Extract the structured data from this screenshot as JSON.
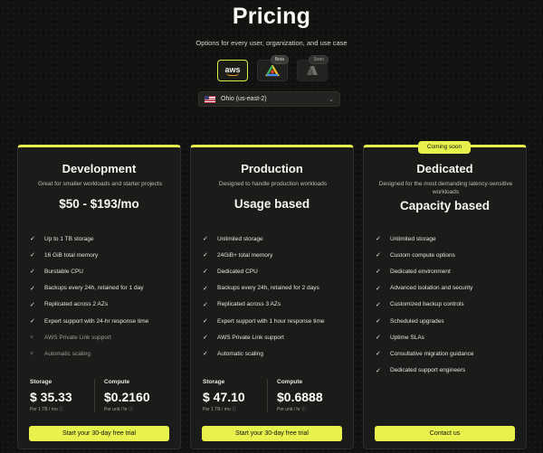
{
  "page": {
    "title": "Pricing",
    "subtitle": "Options for every user, organization, and use case"
  },
  "providers": [
    {
      "id": "aws",
      "label": "aws",
      "selected": true,
      "badge": ""
    },
    {
      "id": "gcp",
      "label": "",
      "selected": false,
      "badge": "Beta"
    },
    {
      "id": "azure",
      "label": "",
      "selected": false,
      "badge": "Soon"
    }
  ],
  "region": {
    "flag": "us-flag-icon",
    "label": "Ohio (us-east-2)"
  },
  "colors": {
    "accent": "#e8f24c",
    "background": "#121211",
    "card": "#1b1b1a"
  },
  "plans": [
    {
      "title": "Development",
      "subtitle": "Great for smaller workloads and starter projects",
      "price": "$50 - $193/mo",
      "features": [
        {
          "text": "Up to 1 TB storage",
          "included": true
        },
        {
          "text": "16 GiB total memory",
          "included": true
        },
        {
          "text": "Burstable CPU",
          "included": true
        },
        {
          "text": "Backups every 24h, retained for 1 day",
          "included": true
        },
        {
          "text": "Replicated across 2 AZs",
          "included": true
        },
        {
          "text": "Expert support with 24-hr response time",
          "included": true
        },
        {
          "text": "AWS Private Link support",
          "included": false
        },
        {
          "text": "Automatic scaling",
          "included": false
        }
      ],
      "storage": {
        "label": "Storage",
        "value": "$ 35.33",
        "note": "Per 1 TB / mo"
      },
      "compute": {
        "label": "Compute",
        "value": "$0.2160",
        "note": "Per unit / hr"
      },
      "cta": "Start your 30-day free trial"
    },
    {
      "title": "Production",
      "subtitle": "Designed to handle production workloads",
      "price": "Usage based",
      "features": [
        {
          "text": "Unlimited storage",
          "included": true
        },
        {
          "text": "24GiB+ total memory",
          "included": true
        },
        {
          "text": "Dedicated CPU",
          "included": true
        },
        {
          "text": "Backups every 24h, retained for 2 days",
          "included": true
        },
        {
          "text": "Replicated across 3 AZs",
          "included": true
        },
        {
          "text": "Expert support with 1 hour response time",
          "included": true
        },
        {
          "text": "AWS Private Link support",
          "included": true
        },
        {
          "text": "Automatic scaling",
          "included": true
        }
      ],
      "storage": {
        "label": "Storage",
        "value": "$ 47.10",
        "note": "Per 1 TB / mo"
      },
      "compute": {
        "label": "Compute",
        "value": "$0.6888",
        "note": "Per unit / hr"
      },
      "cta": "Start your 30-day free trial"
    },
    {
      "title": "Dedicated",
      "badge": "Coming soon",
      "subtitle": "Designed for the most demanding latency-sensitive workloads",
      "price": "Capacity based",
      "features": [
        {
          "text": "Unlimited storage",
          "included": true
        },
        {
          "text": "Custom compute options",
          "included": true
        },
        {
          "text": "Dedicated environment",
          "included": true
        },
        {
          "text": "Advanced isolation and security",
          "included": true
        },
        {
          "text": "Customized backup controls",
          "included": true
        },
        {
          "text": "Scheduled upgrades",
          "included": true
        },
        {
          "text": "Uptime SLAs",
          "included": true
        },
        {
          "text": "Consultative migration guidance",
          "included": true
        },
        {
          "text": "Dedicated support engineers",
          "included": true
        }
      ],
      "cta": "Contact us"
    }
  ]
}
